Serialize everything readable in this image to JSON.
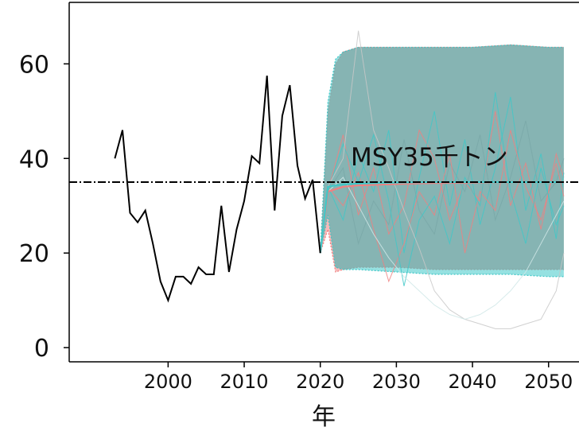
{
  "chart_data": {
    "type": "line",
    "title": "",
    "xlabel": "年",
    "ylabel": "",
    "xlim": [
      1987,
      2054
    ],
    "ylim": [
      -3,
      73
    ],
    "x_ticks": [
      2000,
      2010,
      2020,
      2030,
      2040,
      2050
    ],
    "y_ticks": [
      0,
      20,
      40,
      60
    ],
    "reference_line": {
      "label": "MSY35千トン",
      "value": 35
    },
    "series": [
      {
        "name": "",
        "color": "#000000",
        "x": [
          1993,
          1994,
          1995,
          1996,
          1997,
          1998,
          1999,
          2000,
          2001,
          2002,
          2003,
          2004,
          2005,
          2006,
          2007,
          2008,
          2009,
          2010,
          2011,
          2012,
          2013,
          2014,
          2015,
          2016,
          2017,
          2018,
          2019,
          2020
        ],
        "y": [
          40,
          46,
          28.5,
          26.5,
          29,
          22,
          14,
          10,
          15,
          15,
          13.5,
          17,
          15.5,
          15.5,
          30,
          16,
          25,
          31,
          40.5,
          39,
          57.5,
          29,
          49,
          55.5,
          38.5,
          31.5,
          35.5,
          20
        ]
      }
    ],
    "projection_scenario_1": {
      "color": "#f08080",
      "x": [
        2020,
        2021,
        2022,
        2023,
        2025,
        2030,
        2035,
        2040,
        2045,
        2050,
        2052
      ],
      "median": [
        20,
        33,
        33.5,
        34,
        34.3,
        34.6,
        34.8,
        34.9,
        35,
        35,
        35
      ],
      "upper": [
        20,
        50,
        60,
        62.5,
        63.5,
        63.5,
        63.5,
        63.5,
        64,
        63.5,
        63.5
      ],
      "lower": [
        20,
        25,
        16,
        16.5,
        17,
        17,
        16.5,
        16.5,
        16.5,
        16.5,
        16.5
      ]
    },
    "projection_scenario_2": {
      "color": "#40c8c8",
      "x": [
        2020,
        2021,
        2022,
        2023,
        2025,
        2030,
        2035,
        2040,
        2045,
        2050,
        2052
      ],
      "median": [
        20,
        34,
        34.3,
        34.5,
        34.7,
        34.9,
        35,
        35,
        35,
        35,
        35
      ],
      "upper": [
        20,
        52,
        61,
        62.5,
        63.5,
        63.5,
        63.5,
        63.5,
        64,
        63.5,
        63.5
      ],
      "lower": [
        20,
        28,
        17,
        16.5,
        16.5,
        16,
        15.5,
        15.5,
        15.5,
        15,
        15
      ]
    },
    "sample_trajectories": [
      {
        "color": "#f08080",
        "x": [
          2021,
          2023,
          2025,
          2027,
          2029,
          2031,
          2033,
          2035,
          2037,
          2039,
          2041,
          2043,
          2045,
          2047,
          2049,
          2051,
          2052
        ],
        "y": [
          33,
          45,
          28,
          38,
          24,
          30,
          46,
          40,
          27,
          35,
          31,
          50,
          30,
          39,
          25,
          41,
          36
        ]
      },
      {
        "color": "#40c8c8",
        "x": [
          2021,
          2023,
          2025,
          2027,
          2029,
          2031,
          2033,
          2035,
          2037,
          2039,
          2041,
          2043,
          2045,
          2047,
          2049,
          2051,
          2052
        ],
        "y": [
          34,
          27,
          41,
          33,
          46,
          20,
          36,
          50,
          30,
          44,
          26,
          38,
          53,
          29,
          41,
          23,
          37
        ]
      },
      {
        "color": "#7aa8a8",
        "x": [
          2021,
          2023,
          2025,
          2027,
          2029,
          2031,
          2033,
          2035,
          2037,
          2039,
          2041,
          2043,
          2045,
          2047,
          2049,
          2051,
          2052
        ],
        "y": [
          33,
          38,
          22,
          31,
          26,
          44,
          29,
          24,
          39,
          33,
          45,
          27,
          36,
          48,
          31,
          35,
          40
        ]
      },
      {
        "color": "#f08080",
        "x": [
          2021,
          2023,
          2025,
          2027,
          2029,
          2031,
          2033,
          2035,
          2037,
          2039,
          2041,
          2043,
          2045,
          2047,
          2049,
          2051,
          2052
        ],
        "y": [
          34,
          30,
          37,
          25,
          14,
          22,
          33,
          28,
          41,
          20,
          33,
          29,
          46,
          34,
          27,
          39,
          32
        ]
      },
      {
        "color": "#40c8c8",
        "x": [
          2021,
          2023,
          2025,
          2027,
          2029,
          2031,
          2033,
          2035,
          2037,
          2039,
          2041,
          2043,
          2045,
          2047,
          2049,
          2051,
          2052
        ],
        "y": [
          33,
          43,
          35,
          45,
          31,
          13,
          27,
          32,
          22,
          36,
          30,
          54,
          33,
          22,
          38,
          26,
          30
        ]
      },
      {
        "color": "#c8c8c8",
        "x": [
          2021,
          2023,
          2025,
          2027,
          2029,
          2031,
          2033,
          2035,
          2037,
          2039,
          2041,
          2043,
          2045,
          2047,
          2049,
          2051,
          2052
        ],
        "y": [
          34,
          40,
          67,
          46,
          38,
          29,
          21,
          12,
          8,
          6,
          5,
          4,
          4,
          5,
          6,
          12,
          20
        ]
      },
      {
        "color": "#d0e8e8",
        "x": [
          2021,
          2023,
          2025,
          2027,
          2029,
          2031,
          2033,
          2035,
          2037,
          2039,
          2041,
          2043,
          2045,
          2047,
          2049,
          2051,
          2052
        ],
        "y": [
          33,
          36,
          30,
          24,
          19,
          15,
          12,
          9,
          7,
          6,
          7,
          9,
          12,
          16,
          22,
          28,
          31
        ]
      }
    ]
  }
}
